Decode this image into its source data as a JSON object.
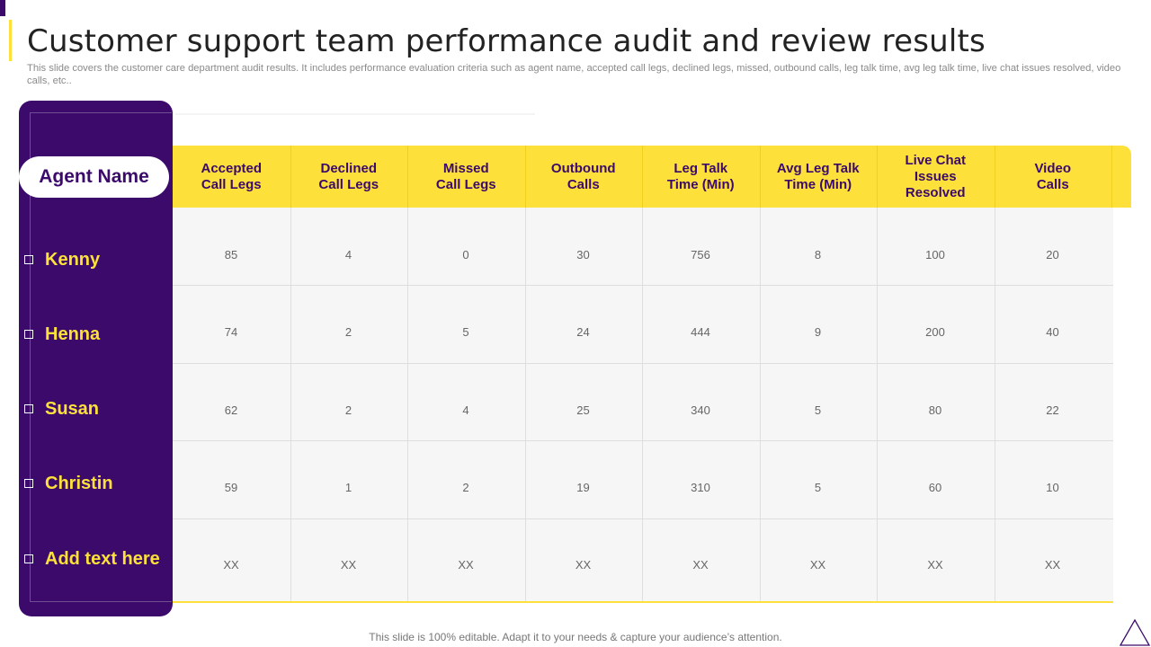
{
  "slide": {
    "title": "Customer support team performance audit and review results",
    "subtitle": "This slide covers the customer care department audit results. It includes performance evaluation criteria such as agent name, accepted call legs, declined legs, missed, outbound calls, leg talk time, avg leg talk time, live chat issues resolved, video calls, etc..",
    "footer": "This slide is 100% editable. Adapt it to your needs & capture your audience’s attention."
  },
  "colors": {
    "purple": "#3b0a6b",
    "yellow": "#fde13a",
    "cell_bg": "#f6f6f6"
  },
  "table": {
    "agent_header": "Agent Name",
    "columns": [
      "Accepted\nCall Legs",
      "Declined\nCall Legs",
      "Missed\nCall Legs",
      "Outbound\nCalls",
      "Leg Talk\nTime (Min)",
      "Avg Leg Talk\nTime (Min)",
      "Live Chat\nIssues\nResolved",
      "Video\nCalls"
    ],
    "rows": [
      {
        "agent": "Kenny",
        "values": [
          "85",
          "4",
          "0",
          "30",
          "756",
          "8",
          "100",
          "20"
        ]
      },
      {
        "agent": "Henna",
        "values": [
          "74",
          "2",
          "5",
          "24",
          "444",
          "9",
          "200",
          "40"
        ]
      },
      {
        "agent": "Susan",
        "values": [
          "62",
          "2",
          "4",
          "25",
          "340",
          "5",
          "80",
          "22"
        ]
      },
      {
        "agent": "Christin",
        "values": [
          "59",
          "1",
          "2",
          "19",
          "310",
          "5",
          "60",
          "10"
        ]
      },
      {
        "agent": "Add text here",
        "values": [
          "XX",
          "XX",
          "XX",
          "XX",
          "XX",
          "XX",
          "XX",
          "XX"
        ]
      }
    ]
  }
}
